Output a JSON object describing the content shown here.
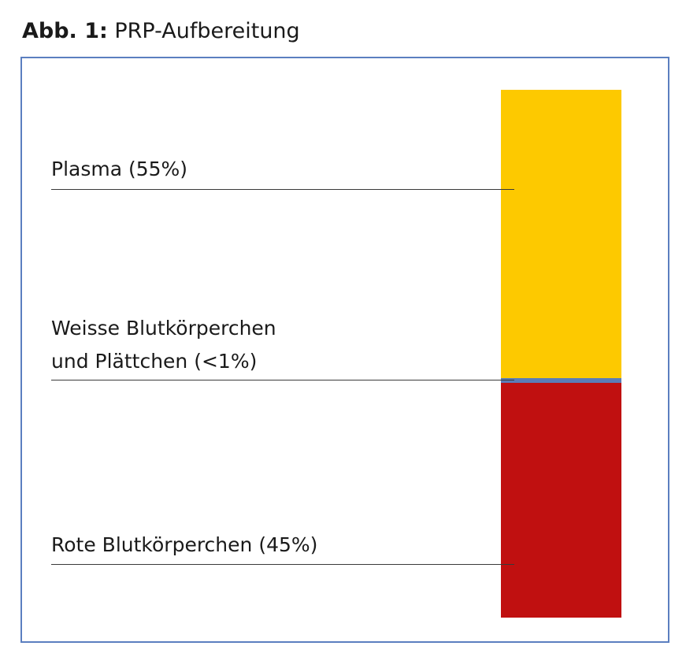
{
  "figure": {
    "number": "Abb. 1:",
    "title": "PRP-Aufbereitung"
  },
  "layers": [
    {
      "id": "plasma",
      "label": "Plasma (55%)",
      "fraction": 0.55,
      "color": "#fdc900"
    },
    {
      "id": "buffy",
      "label_line1": "Weisse Blutkörperchen",
      "label_line2": "und Plättchen (<1%)",
      "fraction": 0.01,
      "color": "#5a7db8"
    },
    {
      "id": "rbc",
      "label": "Rote Blutkörperchen (45%)",
      "fraction": 0.45,
      "color": "#c01010"
    }
  ],
  "colors": {
    "frame": "#5b7fc0",
    "leader": "#3a3a3a"
  }
}
